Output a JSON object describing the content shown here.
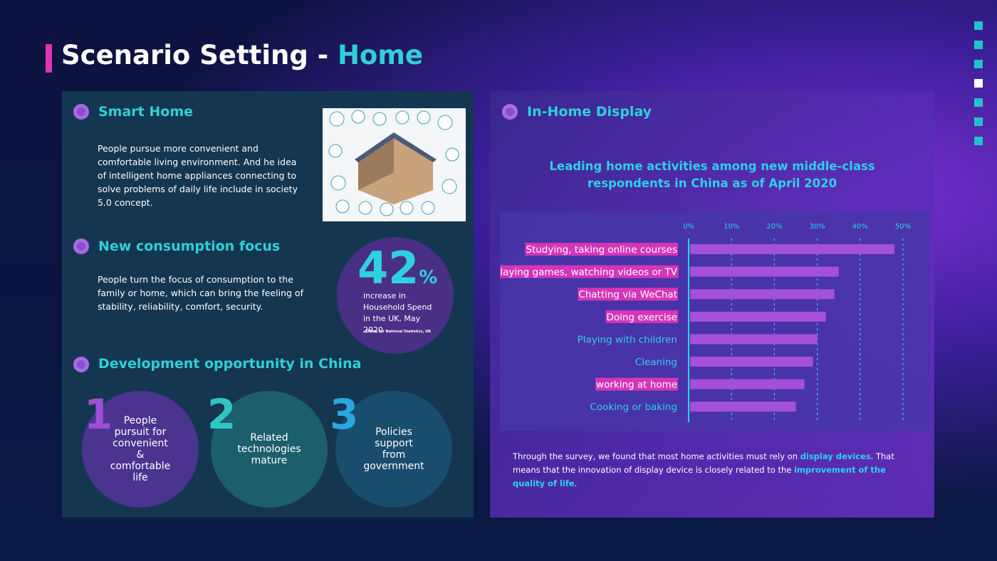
{
  "header": {
    "title": "Scenario Setting - ",
    "title_highlight": "Home"
  },
  "smart_home": {
    "heading": "Smart Home",
    "body": "People pursue more convenient and comfortable living environment. And he idea of intelligent home appliances connecting to solve problems of daily life include in society 5.0 concept."
  },
  "consumption": {
    "heading": "New consumption focus",
    "body": "People turn the focus of consumption to the family or home, which can bring the feeling of stability, reliability, comfort, security.",
    "stat": {
      "number": "42",
      "unit": "%",
      "caption": "increase in Household Spend in the UK, May 2020",
      "source": "- Office for National Statistics, UK"
    }
  },
  "development": {
    "heading": "Development opportunity in China",
    "items": [
      {
        "number": "1",
        "text": "People pursuit for convenient & comfortable life"
      },
      {
        "number": "2",
        "text": "Related technologies mature"
      },
      {
        "number": "3",
        "text": "Policies support from government"
      }
    ]
  },
  "display": {
    "heading": "In-Home Display",
    "summary": [
      "Through the survey, we found that most home activities must rely on ",
      "display devices",
      ". That means that the innovation of display device is closely related to the ",
      "improvement of the quality of life",
      "."
    ]
  },
  "chart_data": {
    "type": "bar",
    "orientation": "horizontal",
    "title": "Leading home activities among new middle-class respondents in China as of April 2020",
    "categories": [
      "Studying, taking online courses",
      "Playing games, watching videos or TV",
      "Chatting via WeChat",
      "Doing exercise",
      "Playing with children",
      "Cleaning",
      "working at home",
      "Cooking or baking"
    ],
    "values": [
      48,
      35,
      34,
      32,
      30,
      29,
      27,
      25
    ],
    "label_highlight": [
      true,
      true,
      true,
      true,
      false,
      false,
      true,
      false
    ],
    "color": "#a450d8",
    "highlight_color": "#d535b8",
    "xlim": [
      0,
      50
    ],
    "xticks": [
      {
        "value": 0,
        "label": "0%"
      },
      {
        "value": 10,
        "label": "10%"
      },
      {
        "value": 20,
        "label": "20%"
      },
      {
        "value": 30,
        "label": "30%"
      },
      {
        "value": 40,
        "label": "40%"
      },
      {
        "value": 50,
        "label": "50%"
      }
    ],
    "grid": true
  }
}
